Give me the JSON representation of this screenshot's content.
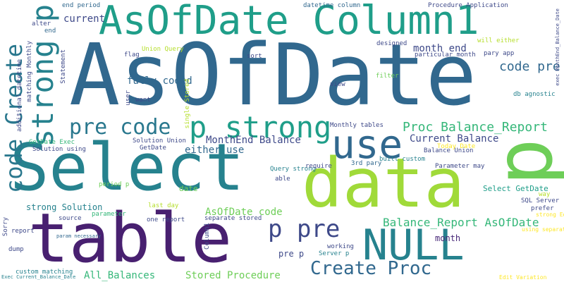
{
  "palette": [
    "#440154",
    "#482878",
    "#3e4989",
    "#31688e",
    "#26828e",
    "#1f9e89",
    "#35b779",
    "#6ece58",
    "#b5de2b",
    "#fde725"
  ],
  "words": [
    {
      "text": "AsOfDate",
      "color": "#31688e"
    },
    {
      "text": "Select",
      "color": "#26828e"
    },
    {
      "text": "data",
      "color": "#a0da39"
    },
    {
      "text": "table",
      "color": "#482070"
    },
    {
      "text": "p",
      "color": "#6ece58"
    },
    {
      "text": "AsOfDate Column1",
      "color": "#1f9e89"
    },
    {
      "text": "use",
      "color": "#31688e"
    },
    {
      "text": "NULL",
      "color": "#26828e"
    },
    {
      "text": "p strong",
      "color": "#1f9e89"
    },
    {
      "text": "strong p",
      "color": "#26828e"
    },
    {
      "text": "code Create",
      "color": "#2a788e"
    },
    {
      "text": "p pre",
      "color": "#3e4989"
    },
    {
      "text": "pre code",
      "color": "#2a788e"
    },
    {
      "text": "Create Proc",
      "color": "#31688e"
    },
    {
      "text": "Proc Balance_Report",
      "color": "#35b779"
    },
    {
      "text": "Balance_Report AsOfDate",
      "color": "#35b779"
    },
    {
      "text": "code pre",
      "color": "#31688e"
    },
    {
      "text": "month end",
      "color": "#3e4989"
    },
    {
      "text": "fully coded",
      "color": "#31688e"
    },
    {
      "text": "current",
      "color": "#3e4989"
    },
    {
      "text": "MonthEnd Balance",
      "color": "#3e4989"
    },
    {
      "text": "either use",
      "color": "#31688e"
    },
    {
      "text": "Current Balance",
      "color": "#3e4989"
    },
    {
      "text": "AsOfDate code",
      "color": "#6ece58"
    },
    {
      "text": "Stored Procedure",
      "color": "#6ece58"
    },
    {
      "text": "All_Balances",
      "color": "#35b779"
    },
    {
      "text": "strong Solution",
      "color": "#26828e"
    },
    {
      "text": "Select GetDate",
      "color": "#1f9e89"
    },
    {
      "text": "pre p",
      "color": "#3e4989"
    },
    {
      "text": "month",
      "color": "#482878"
    },
    {
      "text": "end period",
      "color": "#31688e"
    },
    {
      "text": "datetime column",
      "color": "#31688e"
    },
    {
      "text": "Procedure Application",
      "color": "#3e4989"
    },
    {
      "text": "will either",
      "color": "#b5de2b"
    },
    {
      "text": "pary app",
      "color": "#3e4989"
    },
    {
      "text": "particular month",
      "color": "#3e4989"
    },
    {
      "text": "designed",
      "color": "#3e4989"
    },
    {
      "text": "sort",
      "color": "#3e4989"
    },
    {
      "text": "Union Query",
      "color": "#b5de2b"
    },
    {
      "text": "flag",
      "color": "#3e4989"
    },
    {
      "text": "alter",
      "color": "#3e4989"
    },
    {
      "text": "end",
      "color": "#31688e"
    },
    {
      "text": "filter",
      "color": "#6ece58"
    },
    {
      "text": "view",
      "color": "#3e4989"
    },
    {
      "text": "db agnostic",
      "color": "#26828e"
    },
    {
      "text": "Monthly tables",
      "color": "#3e4989"
    },
    {
      "text": "Query strong",
      "color": "#26828e"
    },
    {
      "text": "built custom",
      "color": "#26828e"
    },
    {
      "text": "Balance Union",
      "color": "#3e4989"
    },
    {
      "text": "Parameter may",
      "color": "#3e4989"
    },
    {
      "text": "3rd pary",
      "color": "#31688e"
    },
    {
      "text": "require",
      "color": "#3e4989"
    },
    {
      "text": "able",
      "color": "#3e4989"
    },
    {
      "text": "Today Date",
      "color": "#fde725"
    },
    {
      "text": "GetDate Exec",
      "color": "#35b779"
    },
    {
      "text": "Solution using",
      "color": "#3e4989"
    },
    {
      "text": "Solution Union",
      "color": "#3e4989"
    },
    {
      "text": "GetDate",
      "color": "#3e4989"
    },
    {
      "text": "date",
      "color": "#6ece58"
    },
    {
      "text": "last day",
      "color": "#b5de2b"
    },
    {
      "text": "period p",
      "color": "#6ece58"
    },
    {
      "text": "parameter",
      "color": "#35b779"
    },
    {
      "text": "source",
      "color": "#3e4989"
    },
    {
      "text": "one report",
      "color": "#3e4989"
    },
    {
      "text": "separate stored",
      "color": "#3e4989"
    },
    {
      "text": "report",
      "color": "#3e4989"
    },
    {
      "text": "param necessary",
      "color": "#31688e"
    },
    {
      "text": "dump",
      "color": "#3e4989"
    },
    {
      "text": "working",
      "color": "#3e4989"
    },
    {
      "text": "Server p",
      "color": "#26828e"
    },
    {
      "text": "custom matching",
      "color": "#26828e"
    },
    {
      "text": "Exec Current_Balance_Date",
      "color": "#26828e"
    },
    {
      "text": "way",
      "color": "#b5de2b"
    },
    {
      "text": "SQL Server",
      "color": "#3e4989"
    },
    {
      "text": "prefer",
      "color": "#3e4989"
    },
    {
      "text": "strong Edit",
      "color": "#fde725"
    },
    {
      "text": "using separate",
      "color": "#fde725"
    },
    {
      "text": "Edit Variation",
      "color": "#fde725"
    },
    {
      "text": "Statement",
      "color": "#3e4989"
    },
    {
      "text": "user",
      "color": "#3e4989"
    },
    {
      "text": "want",
      "color": "#3e4989"
    },
    {
      "text": "single Stored",
      "color": "#b5de2b"
    },
    {
      "text": "Column1",
      "color": "#3e4989"
    },
    {
      "text": "matching Monthly",
      "color": "#3e4989"
    },
    {
      "text": "additional datetime",
      "color": "#3e4989"
    },
    {
      "text": "Sorry",
      "color": "#3e4989"
    },
    {
      "text": "exec MonthEnd_Balance_Date",
      "color": "#3e4989"
    }
  ]
}
